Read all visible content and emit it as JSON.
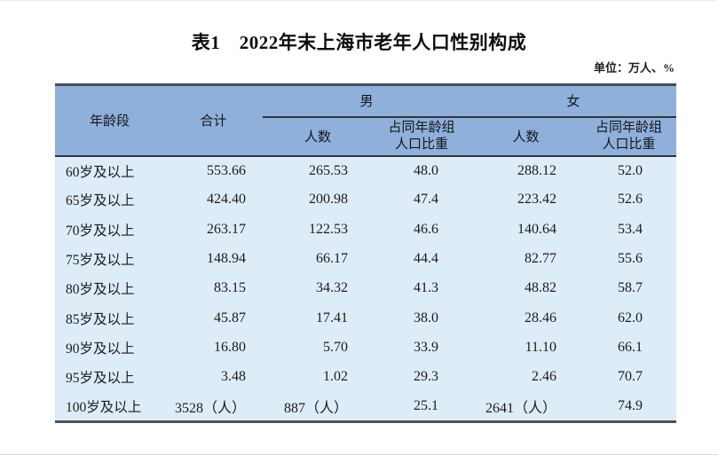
{
  "title": "表1　2022年末上海市老年人口性别构成",
  "unit_note": "单位：万人、%",
  "colors": {
    "header_bg": "#8fb0da",
    "row_bg": "#ddecf7",
    "border_dark": "#454c56"
  },
  "table": {
    "header": {
      "age": "年龄段",
      "total": "合计",
      "male": "男",
      "female": "女",
      "count": "人数",
      "share": "占同年龄组\n人口比重"
    },
    "rows": [
      {
        "age": "60岁及以上",
        "total": "553.66",
        "male_count": "265.53",
        "male_share": "48.0",
        "female_count": "288.12",
        "female_share": "52.0"
      },
      {
        "age": "65岁及以上",
        "total": "424.40",
        "male_count": "200.98",
        "male_share": "47.4",
        "female_count": "223.42",
        "female_share": "52.6"
      },
      {
        "age": "70岁及以上",
        "total": "263.17",
        "male_count": "122.53",
        "male_share": "46.6",
        "female_count": "140.64",
        "female_share": "53.4"
      },
      {
        "age": "75岁及以上",
        "total": "148.94",
        "male_count": "66.17",
        "male_share": "44.4",
        "female_count": "82.77",
        "female_share": "55.6"
      },
      {
        "age": "80岁及以上",
        "total": "83.15",
        "male_count": "34.32",
        "male_share": "41.3",
        "female_count": "48.82",
        "female_share": "58.7"
      },
      {
        "age": "85岁及以上",
        "total": "45.87",
        "male_count": "17.41",
        "male_share": "38.0",
        "female_count": "28.46",
        "female_share": "62.0"
      },
      {
        "age": "90岁及以上",
        "total": "16.80",
        "male_count": "5.70",
        "male_share": "33.9",
        "female_count": "11.10",
        "female_share": "66.1"
      },
      {
        "age": "95岁及以上",
        "total": "3.48",
        "male_count": "1.02",
        "male_share": "29.3",
        "female_count": "2.46",
        "female_share": "70.7"
      },
      {
        "age": "100岁及以上",
        "total": "3528（人）",
        "male_count": "887（人）",
        "male_share": "25.1",
        "female_count": "2641（人）",
        "female_share": "74.9"
      }
    ]
  }
}
